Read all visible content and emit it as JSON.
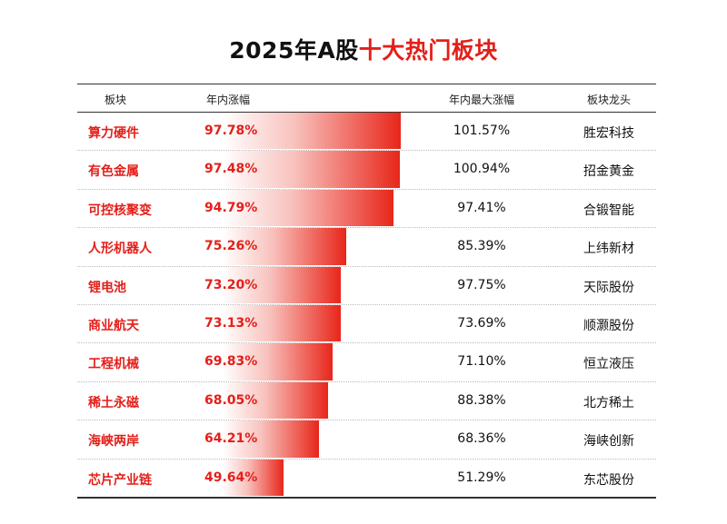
{
  "title": {
    "prefix": "2025年A股",
    "highlight": "十大热门板块"
  },
  "headers": {
    "sector": "板块",
    "ytd": "年内涨幅",
    "max": "年内最大涨幅",
    "leader": "板块龙头"
  },
  "colors": {
    "accent": "#e31f1a"
  },
  "chart_data": {
    "type": "table",
    "title": "2025年A股十大热门板块",
    "rows": [
      {
        "sector": "算力硬件",
        "ytd": 97.78,
        "ytd_label": "97.78%",
        "max_label": "101.57%",
        "leader": "胜宏科技"
      },
      {
        "sector": "有色金属",
        "ytd": 97.48,
        "ytd_label": "97.48%",
        "max_label": "100.94%",
        "leader": "招金黄金"
      },
      {
        "sector": "可控核聚变",
        "ytd": 94.79,
        "ytd_label": "94.79%",
        "max_label": "97.41%",
        "leader": "合锻智能"
      },
      {
        "sector": "人形机器人",
        "ytd": 75.26,
        "ytd_label": "75.26%",
        "max_label": "85.39%",
        "leader": "上纬新材"
      },
      {
        "sector": "锂电池",
        "ytd": 73.2,
        "ytd_label": "73.20%",
        "max_label": "97.75%",
        "leader": "天际股份"
      },
      {
        "sector": "商业航天",
        "ytd": 73.13,
        "ytd_label": "73.13%",
        "max_label": "73.69%",
        "leader": "顺灏股份"
      },
      {
        "sector": "工程机械",
        "ytd": 69.83,
        "ytd_label": "69.83%",
        "max_label": "71.10%",
        "leader": "恒立液压"
      },
      {
        "sector": "稀土永磁",
        "ytd": 68.05,
        "ytd_label": "68.05%",
        "max_label": "88.38%",
        "leader": "北方稀土"
      },
      {
        "sector": "海峡两岸",
        "ytd": 64.21,
        "ytd_label": "64.21%",
        "max_label": "68.36%",
        "leader": "海峡创新"
      },
      {
        "sector": "芯片产业链",
        "ytd": 49.64,
        "ytd_label": "49.64%",
        "max_label": "51.29%",
        "leader": "东芯股份"
      }
    ]
  }
}
